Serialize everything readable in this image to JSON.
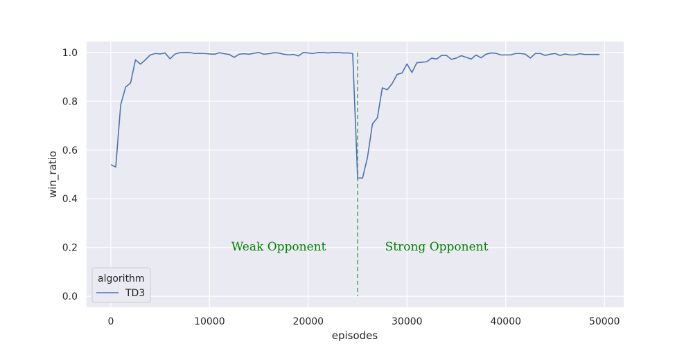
{
  "chart_data": {
    "type": "line",
    "title": "",
    "xlabel": "episodes",
    "ylabel": "win_ratio",
    "xlim": [
      -2450,
      51950
    ],
    "ylim": [
      -0.045,
      1.045
    ],
    "xticks": [
      0,
      10000,
      20000,
      30000,
      40000,
      50000
    ],
    "yticks": [
      0.0,
      0.2,
      0.4,
      0.6,
      0.8,
      1.0
    ],
    "xtick_labels": [
      "0",
      "10000",
      "20000",
      "30000",
      "40000",
      "50000"
    ],
    "ytick_labels": [
      "0.0",
      "0.2",
      "0.4",
      "0.6",
      "0.8",
      "1.0"
    ],
    "grid": true,
    "legend": {
      "title": "algorithm",
      "placement": "lower-left",
      "entries": [
        "TD3"
      ]
    },
    "series": [
      {
        "name": "TD3",
        "color": "#4c72b0",
        "x": [
          0,
          500,
          1000,
          1500,
          2000,
          2500,
          3000,
          3500,
          4000,
          4500,
          5000,
          5500,
          6000,
          6500,
          7000,
          7500,
          8000,
          8500,
          9000,
          9500,
          10000,
          10500,
          11000,
          11500,
          12000,
          12500,
          13000,
          13500,
          14000,
          14500,
          15000,
          15500,
          16000,
          16500,
          17000,
          17500,
          18000,
          18500,
          19000,
          19500,
          20000,
          20500,
          21000,
          21500,
          22000,
          22500,
          23000,
          23500,
          24000,
          24500,
          25000,
          25500,
          26000,
          26500,
          27000,
          27500,
          28000,
          28500,
          29000,
          29500,
          30000,
          30500,
          31000,
          31500,
          32000,
          32500,
          33000,
          33500,
          34000,
          34500,
          35000,
          35500,
          36000,
          36500,
          37000,
          37500,
          38000,
          38500,
          39000,
          39500,
          40000,
          40500,
          41000,
          41500,
          42000,
          42500,
          43000,
          43500,
          44000,
          44500,
          45000,
          45500,
          46000,
          46500,
          47000,
          47500,
          48000,
          48500,
          49000,
          49500
        ],
        "values": [
          0.54,
          0.53,
          0.785,
          0.858,
          0.875,
          0.97,
          0.952,
          0.97,
          0.99,
          0.996,
          0.994,
          0.998,
          0.974,
          0.994,
          0.999,
          1.0,
          1.0,
          0.996,
          0.997,
          0.996,
          0.994,
          0.993,
          0.999,
          0.995,
          0.992,
          0.98,
          0.993,
          0.995,
          0.993,
          0.997,
          1.0,
          0.993,
          0.995,
          0.999,
          0.998,
          0.993,
          0.99,
          0.992,
          0.986,
          1.0,
          0.998,
          0.996,
          1.0,
          1.0,
          0.998,
          1.0,
          1.0,
          0.998,
          0.998,
          0.996,
          0.485,
          0.485,
          0.57,
          0.707,
          0.732,
          0.855,
          0.847,
          0.873,
          0.91,
          0.916,
          0.953,
          0.918,
          0.958,
          0.96,
          0.962,
          0.977,
          0.973,
          0.988,
          0.988,
          0.972,
          0.977,
          0.987,
          0.98,
          0.973,
          0.99,
          0.978,
          0.993,
          0.998,
          0.997,
          0.99,
          0.99,
          0.99,
          0.996,
          0.996,
          0.993,
          0.977,
          0.996,
          0.996,
          0.988,
          0.993,
          0.996,
          0.988,
          0.994,
          0.99,
          0.99,
          0.995,
          0.992,
          0.992,
          0.992,
          0.992
        ]
      }
    ],
    "vline": {
      "x": 25000,
      "ymin": 0.0,
      "ymax": 1.0,
      "color": "#55a868",
      "style": "dashed"
    },
    "annotations": [
      {
        "text": "Weak Opponent",
        "x": 17000,
        "y": 0.2,
        "color": "#008000"
      },
      {
        "text": "Strong Opponent",
        "x": 33000,
        "y": 0.2,
        "color": "#008000"
      }
    ],
    "colors": {
      "background": "#eaeaf2",
      "grid": "#ffffff"
    }
  }
}
